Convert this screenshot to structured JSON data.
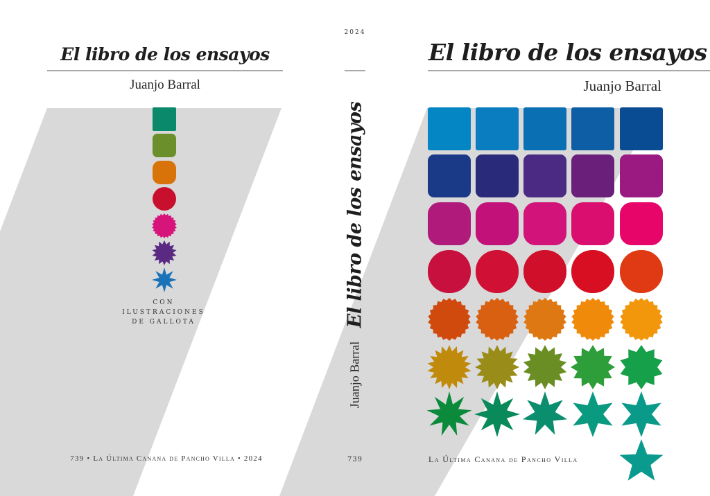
{
  "back_cover": {
    "title": "El libro de los ensayos",
    "author": "Juanjo Barral",
    "credit_line1": "CON",
    "credit_line2": "ILUSTRACIONES",
    "credit_line3": "DE GALLOTA",
    "footer": "739 • La Última Canana de Pancho Villa • 2024"
  },
  "spine": {
    "year": "2024",
    "title": "El libro de los ensayos",
    "author": "Juanjo Barral",
    "number": "739"
  },
  "front_cover": {
    "title": "El libro de los ensayos",
    "author": "Juanjo Barral",
    "footer": "La Última Canana de Pancho Villa"
  },
  "colors": {
    "band": "#d9d9d9",
    "rule": "#a8a8a8",
    "back_column": [
      "#0a8a6a",
      "#6b8f2a",
      "#d8730a",
      "#c8102e",
      "#d6147a",
      "#5a2a82",
      "#1a73b8"
    ],
    "front_grid": [
      [
        "#0586c4",
        "#0a7cc0",
        "#0b6fb4",
        "#0d5ea4",
        "#0a4c94"
      ],
      [
        "#1a3a88",
        "#2a2a7a",
        "#4a2a82",
        "#6a1f7a",
        "#9a1a82"
      ],
      [
        "#b01a7a",
        "#c2127a",
        "#d2137a",
        "#da0e6e",
        "#e8056a"
      ],
      [
        "#c8103e",
        "#d01034",
        "#d0102a",
        "#d80e22",
        "#e03a14"
      ],
      [
        "#d04a0e",
        "#d86010",
        "#de7812",
        "#ef8a0a",
        "#f2960c"
      ],
      [
        "#c08a0c",
        "#9a8c18",
        "#6a8e24",
        "#2e9e3a",
        "#16a04a"
      ],
      [
        "#0a8a3a",
        "#0a8a5a",
        "#0a8e6e",
        "#0a9a80",
        "#0a9a8a"
      ],
      [
        "",
        "",
        "",
        "",
        "#0a9a8e"
      ]
    ]
  }
}
